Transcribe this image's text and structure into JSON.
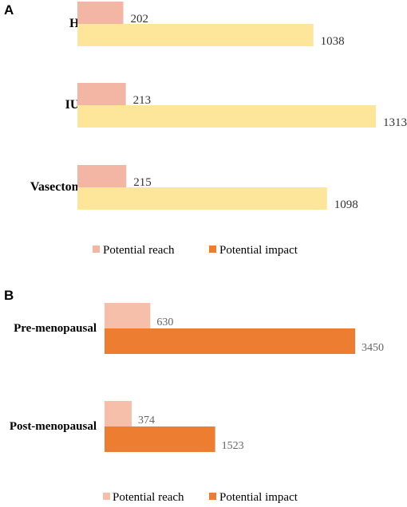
{
  "chart_data": [
    {
      "panel": "A",
      "type": "bar",
      "orientation": "horizontal",
      "categories": [
        "HC",
        "IUD",
        "Vasectomy"
      ],
      "series": [
        {
          "name": "Potential reach",
          "values": [
            202,
            213,
            215
          ],
          "color": "#f4b6a4"
        },
        {
          "name": "Potential impact",
          "values": [
            1038,
            1313,
            1098
          ],
          "color": "#fde59a"
        }
      ],
      "legend": [
        {
          "name": "Potential reach",
          "color": "#f4b6a4"
        },
        {
          "name": "Potential impact",
          "color": "#ed7d31"
        }
      ],
      "legend_position": "bottom",
      "grid": false
    },
    {
      "panel": "B",
      "type": "bar",
      "orientation": "horizontal",
      "categories": [
        "Pre-menopausal",
        "Post-menopausal"
      ],
      "series": [
        {
          "name": "Potential reach",
          "values": [
            630,
            374
          ],
          "color": "#f6bfa9"
        },
        {
          "name": "Potential impact",
          "values": [
            3450,
            1523
          ],
          "color": "#ed7d31"
        }
      ],
      "legend": [
        {
          "name": "Potential reach",
          "color": "#f6bfa9"
        },
        {
          "name": "Potential impact",
          "color": "#ed7d31"
        }
      ],
      "legend_position": "bottom",
      "grid": false
    }
  ]
}
